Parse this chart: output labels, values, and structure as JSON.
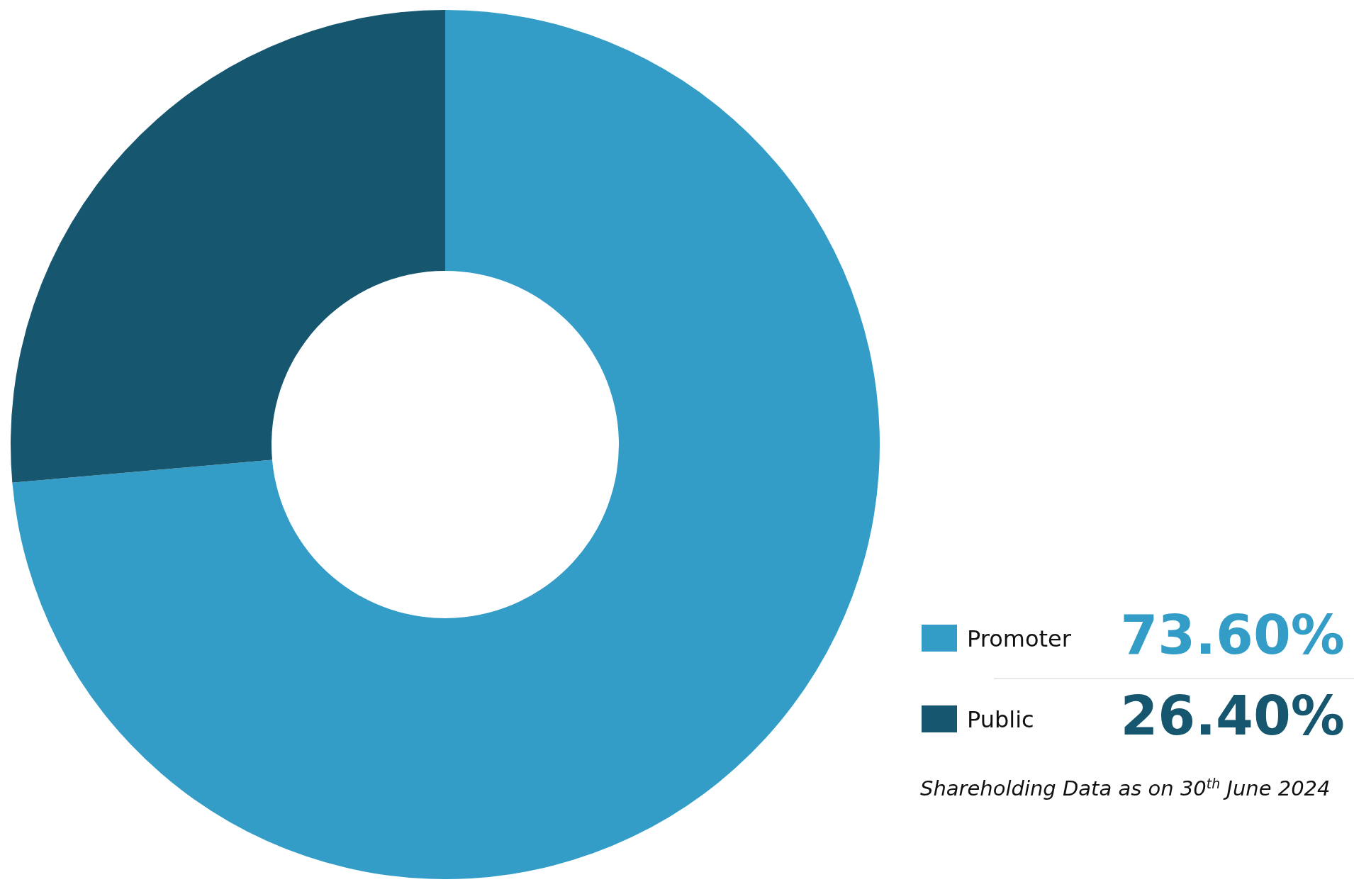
{
  "chart_data": {
    "type": "donut",
    "categories": [
      "Promoter",
      "Public"
    ],
    "values": [
      73.6,
      26.4
    ],
    "colors": [
      "#339dc7",
      "#16566f"
    ],
    "value_labels": [
      "73.60%",
      "26.40%"
    ],
    "legend": "bottom right",
    "annotations": [
      "Shareholding Data as on 30$^{th}$ June 2024"
    ]
  }
}
